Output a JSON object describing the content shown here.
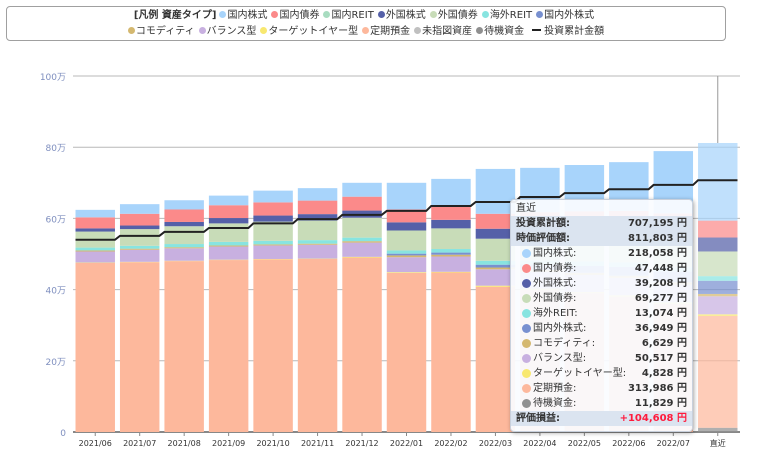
{
  "legend": {
    "title": "[凡例 資産タイプ]",
    "items": [
      {
        "label": "国内株式",
        "color": "#a8d4fb"
      },
      {
        "label": "国内債券",
        "color": "#fb8a8a"
      },
      {
        "label": "国内REIT",
        "color": "#a8dcc0"
      },
      {
        "label": "外国株式",
        "color": "#5560a8"
      },
      {
        "label": "外国債券",
        "color": "#c8dcb8"
      },
      {
        "label": "海外REIT",
        "color": "#88e4e0"
      },
      {
        "label": "国内外株式",
        "color": "#7890d0"
      },
      {
        "label": "コモディティ",
        "color": "#d4b870"
      },
      {
        "label": "バランス型",
        "color": "#c8b0e0"
      },
      {
        "label": "ターゲットイヤー型",
        "color": "#f8e870"
      },
      {
        "label": "定期預金",
        "color": "#fdb89c"
      },
      {
        "label": "未指図資産",
        "color": "#c0c0c0"
      },
      {
        "label": "待機資金",
        "color": "#909090"
      }
    ],
    "line_label": "投資累計金額"
  },
  "chart_data": {
    "type": "bar",
    "stacked": true,
    "unit": "万",
    "ylim": [
      0,
      100
    ],
    "yticks": [
      "0",
      "20万",
      "40万",
      "60万",
      "80万",
      "100万"
    ],
    "grid": true,
    "categories": [
      "2021/06",
      "2021/07",
      "2021/08",
      "2021/09",
      "2021/10",
      "2021/11",
      "2021/12",
      "2022/01",
      "2022/02",
      "2022/03",
      "2022/04",
      "2022/05",
      "2022/06",
      "2022/07",
      "直近"
    ],
    "series": [
      {
        "name": "待機資金",
        "color": "#909090",
        "values": [
          0,
          0,
          0,
          0,
          0,
          0,
          0,
          0,
          0,
          0,
          0,
          0,
          0,
          0,
          1.1829
        ]
      },
      {
        "name": "定期預金",
        "color": "#fdb89c",
        "values": [
          47.5,
          47.7,
          48.0,
          48.3,
          48.5,
          48.6,
          49.0,
          44.7,
          44.8,
          40.8,
          40.0,
          39.0,
          38.0,
          36.0,
          31.3986
        ]
      },
      {
        "name": "ターゲットイヤー型",
        "color": "#f8e870",
        "values": [
          0.1,
          0.1,
          0.1,
          0.1,
          0.1,
          0.1,
          0.2,
          0.2,
          0.2,
          0.3,
          0.3,
          0.3,
          0.4,
          0.4,
          0.4828
        ]
      },
      {
        "name": "バランス型",
        "color": "#c8b0e0",
        "values": [
          3.1,
          3.4,
          3.5,
          3.7,
          3.8,
          3.9,
          4.0,
          4.2,
          4.3,
          4.6,
          4.7,
          4.8,
          4.9,
          5.0,
          5.0517
        ]
      },
      {
        "name": "コモディティ",
        "color": "#d4b870",
        "values": [
          0.3,
          0.3,
          0.3,
          0.3,
          0.3,
          0.3,
          0.4,
          0.5,
          0.5,
          0.5,
          0.55,
          0.6,
          0.6,
          0.65,
          0.6629
        ]
      },
      {
        "name": "国内外株式",
        "color": "#7890d0",
        "values": [
          0,
          0,
          0,
          0,
          0,
          0,
          0,
          0.5,
          0.6,
          0.8,
          1.5,
          2.0,
          2.5,
          3.0,
          3.6949
        ]
      },
      {
        "name": "海外REIT",
        "color": "#88e4e0",
        "values": [
          0.8,
          0.8,
          0.9,
          1.0,
          1.0,
          1.0,
          1.0,
          0.9,
          1.0,
          1.1,
          1.1,
          1.2,
          1.2,
          1.25,
          1.3074
        ]
      },
      {
        "name": "外国債券",
        "color": "#c8dcb8",
        "values": [
          4.5,
          4.7,
          5.0,
          5.2,
          5.4,
          5.5,
          5.6,
          5.6,
          5.8,
          6.2,
          6.3,
          6.5,
          6.6,
          6.8,
          6.9277
        ]
      },
      {
        "name": "外国株式",
        "color": "#5560a8",
        "values": [
          0.9,
          1.0,
          1.2,
          1.5,
          1.7,
          1.8,
          2.0,
          2.3,
          2.4,
          2.8,
          3.0,
          3.2,
          3.4,
          3.7,
          3.9208
        ]
      },
      {
        "name": "国内債券",
        "color": "#fb8a8a",
        "values": [
          3.1,
          3.3,
          3.5,
          3.6,
          3.7,
          3.8,
          3.9,
          3.6,
          3.8,
          4.2,
          4.3,
          4.4,
          4.5,
          4.6,
          4.7448
        ]
      },
      {
        "name": "国内株式",
        "color": "#a8d4fb",
        "values": [
          2.1,
          2.7,
          2.6,
          2.7,
          3.3,
          3.5,
          3.9,
          7.5,
          7.7,
          12.6,
          12.45,
          13.0,
          13.7,
          17.5,
          21.8058
        ]
      }
    ],
    "line": {
      "name": "投資累計金額",
      "color": "#222222",
      "values": [
        54.0,
        55.1,
        56.2,
        57.3,
        58.6,
        59.8,
        61.0,
        62.1,
        63.5,
        64.6,
        66.0,
        67.1,
        68.2,
        69.4,
        70.7195
      ]
    },
    "highlighted_category": "直近"
  },
  "tooltip": {
    "title": "直近",
    "invested": {
      "label": "投資累計額:",
      "value": "707,195 円"
    },
    "market": {
      "label": "時価評価額:",
      "value": "811,803 円"
    },
    "rows": [
      {
        "label": "国内株式:",
        "value": "218,058 円",
        "color": "#a8d4fb"
      },
      {
        "label": "国内債券:",
        "value": "47,448 円",
        "color": "#fb8a8a"
      },
      {
        "label": "外国株式:",
        "value": "39,208 円",
        "color": "#5560a8"
      },
      {
        "label": "外国債券:",
        "value": "69,277 円",
        "color": "#c8dcb8"
      },
      {
        "label": "海外REIT:",
        "value": "13,074 円",
        "color": "#88e4e0"
      },
      {
        "label": "国内外株式:",
        "value": "36,949 円",
        "color": "#7890d0"
      },
      {
        "label": "コモディティ:",
        "value": "6,629 円",
        "color": "#d4b870"
      },
      {
        "label": "バランス型:",
        "value": "50,517 円",
        "color": "#c8b0e0"
      },
      {
        "label": "ターゲットイヤー型:",
        "value": "4,828 円",
        "color": "#f8e870"
      },
      {
        "label": "定期預金:",
        "value": "313,986 円",
        "color": "#fdb89c"
      },
      {
        "label": "待機資金:",
        "value": "11,829 円",
        "color": "#909090"
      }
    ],
    "profit": {
      "label": "評価損益:",
      "value": "+104,608 円"
    }
  }
}
